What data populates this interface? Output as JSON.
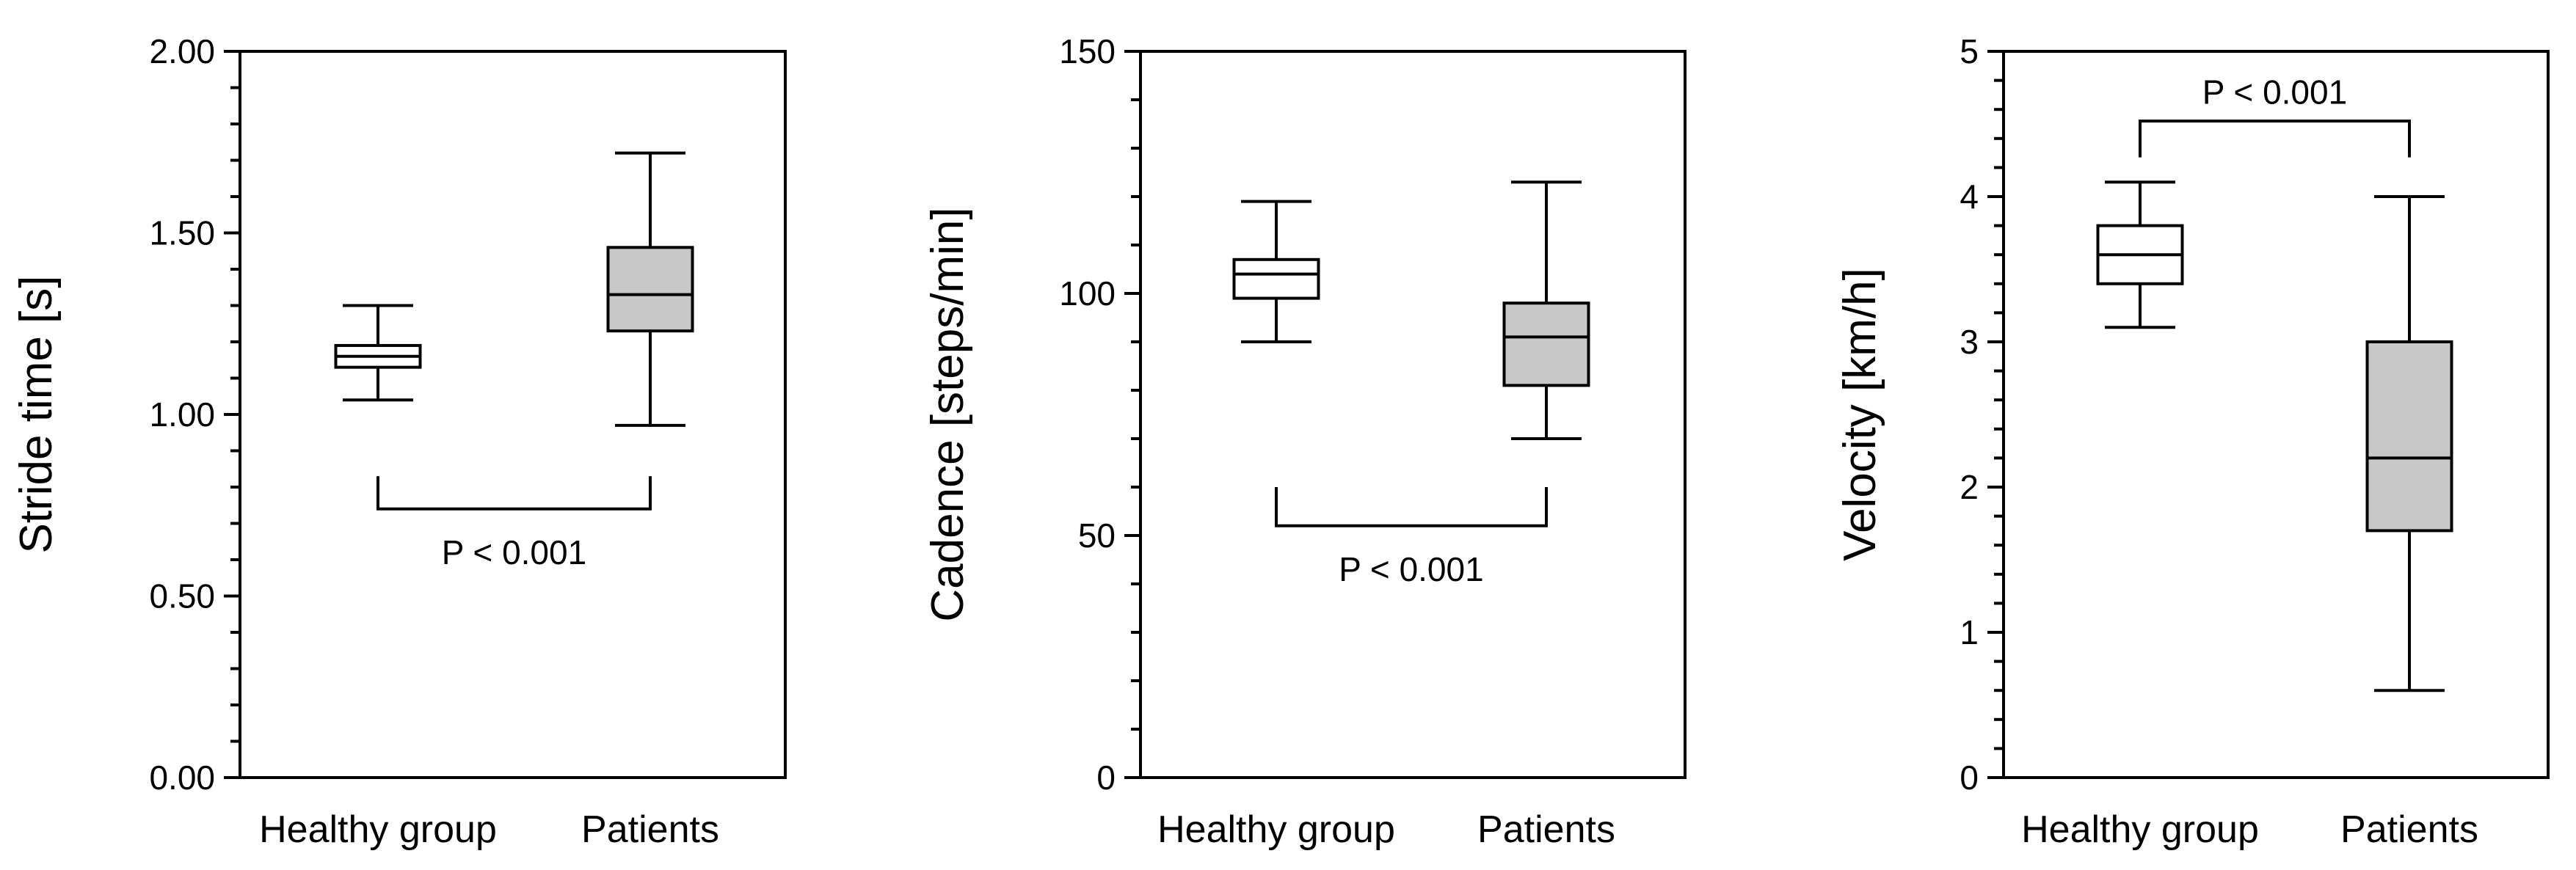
{
  "chart_data": [
    {
      "type": "box",
      "ylabel": "Stride time [s]",
      "ylim": [
        0,
        2.0
      ],
      "yticks": [
        0.0,
        0.5,
        1.0,
        1.5,
        2.0
      ],
      "ytick_labels": [
        "0.00",
        "0.50",
        "1.00",
        "1.50",
        "2.00"
      ],
      "minor_step": 0.1,
      "categories": [
        "Healthy group",
        "Patients"
      ],
      "boxes": [
        {
          "name": "Healthy group",
          "min": 1.04,
          "q1": 1.13,
          "median": 1.16,
          "q3": 1.19,
          "max": 1.3,
          "fill": "#ffffff"
        },
        {
          "name": "Patients",
          "min": 0.97,
          "q1": 1.23,
          "median": 1.33,
          "q3": 1.46,
          "max": 1.72,
          "fill": "#c8c8c8"
        }
      ],
      "significance": {
        "label": "P < 0.001",
        "position": "below",
        "bar_value": 0.74,
        "arm_value": 0.83,
        "label_value": 0.62
      }
    },
    {
      "type": "box",
      "ylabel": "Cadence [steps/min]",
      "ylim": [
        0,
        150
      ],
      "yticks": [
        0,
        50,
        100,
        150
      ],
      "ytick_labels": [
        "0",
        "50",
        "100",
        "150"
      ],
      "minor_step": 10,
      "categories": [
        "Healthy group",
        "Patients"
      ],
      "boxes": [
        {
          "name": "Healthy group",
          "min": 90,
          "q1": 99,
          "median": 104,
          "q3": 107,
          "max": 119,
          "fill": "#ffffff"
        },
        {
          "name": "Patients",
          "min": 70,
          "q1": 81,
          "median": 91,
          "q3": 98,
          "max": 123,
          "fill": "#c8c8c8"
        }
      ],
      "significance": {
        "label": "P < 0.001",
        "position": "below",
        "bar_value": 52,
        "arm_value": 60,
        "label_value": 43
      }
    },
    {
      "type": "box",
      "ylabel": "Velocity [km/h]",
      "ylim": [
        0,
        5
      ],
      "yticks": [
        0,
        1,
        2,
        3,
        4,
        5
      ],
      "ytick_labels": [
        "0",
        "1",
        "2",
        "3",
        "4",
        "5"
      ],
      "minor_step": 0.2,
      "categories": [
        "Healthy group",
        "Patients"
      ],
      "boxes": [
        {
          "name": "Healthy group",
          "min": 3.1,
          "q1": 3.4,
          "median": 3.6,
          "q3": 3.8,
          "max": 4.1,
          "fill": "#ffffff"
        },
        {
          "name": "Patients",
          "min": 0.6,
          "q1": 1.7,
          "median": 2.2,
          "q3": 3.0,
          "max": 4.0,
          "fill": "#c8c8c8"
        }
      ],
      "significance": {
        "label": "P < 0.001",
        "position": "above",
        "bar_value": 4.52,
        "arm_value": 4.27,
        "label_value": 4.72
      }
    }
  ]
}
